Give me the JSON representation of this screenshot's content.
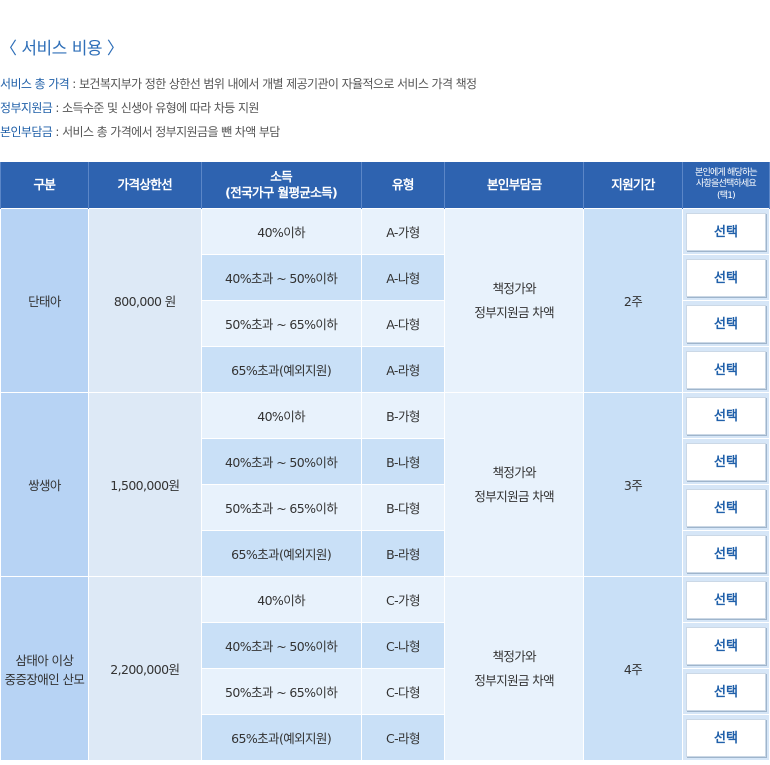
{
  "title": "〈 서비스 비용 〉",
  "descriptions": [
    {
      "key": "서비스 총 가격",
      "text": " : 보건복지부가 정한 상한선 범위 내에서 개별 제공기관이 자율적으로 서비스 가격 책정"
    },
    {
      "key": "정부지원금",
      "text": " : 소득수준 및 신생아 유형에 따라 차등 지원"
    },
    {
      "key": "본인부담금",
      "text": " : 서비스 총 가격에서 정부지원금을 뺀 차액 부담"
    }
  ],
  "headers": {
    "category": "구분",
    "price_cap": "가격상한선",
    "income_line1": "소득",
    "income_line2": "(전국가구 월평균소득)",
    "type": "유형",
    "self_pay": "본인부담금",
    "period": "지원기간",
    "select_line1": "본인에게 해당하는",
    "select_line2": "사항을선택하세요",
    "select_line3": "(택1)"
  },
  "groups": [
    {
      "category": "단태아",
      "price": "800,000 원",
      "self_pay_line1": "책정가와",
      "self_pay_line2": "정부지원금 차액",
      "period": "2주",
      "rows": [
        {
          "income": "40%이하",
          "type": "A-가형",
          "button": "선택"
        },
        {
          "income": "40%초과 ~ 50%이하",
          "type": "A-나형",
          "button": "선택"
        },
        {
          "income": "50%초과 ~ 65%이하",
          "type": "A-다형",
          "button": "선택"
        },
        {
          "income": "65%초과(예외지원)",
          "type": "A-라형",
          "button": "선택"
        }
      ]
    },
    {
      "category": "쌍생아",
      "price": "1,500,000원",
      "self_pay_line1": "책정가와",
      "self_pay_line2": "정부지원금 차액",
      "period": "3주",
      "rows": [
        {
          "income": "40%이하",
          "type": "B-가형",
          "button": "선택"
        },
        {
          "income": "40%초과 ~ 50%이하",
          "type": "B-나형",
          "button": "선택"
        },
        {
          "income": "50%초과 ~ 65%이하",
          "type": "B-다형",
          "button": "선택"
        },
        {
          "income": "65%초과(예외지원)",
          "type": "B-라형",
          "button": "선택"
        }
      ]
    },
    {
      "category_line1": "삼태아 이상",
      "category_line2": "중증장애인 산모",
      "price": "2,200,000원",
      "self_pay_line1": "책정가와",
      "self_pay_line2": "정부지원금 차액",
      "period": "4주",
      "rows": [
        {
          "income": "40%이하",
          "type": "C-가형",
          "button": "선택"
        },
        {
          "income": "40%초과 ~ 50%이하",
          "type": "C-나형",
          "button": "선택"
        },
        {
          "income": "50%초과 ~ 65%이하",
          "type": "C-다형",
          "button": "선택"
        },
        {
          "income": "65%초과(예외지원)",
          "type": "C-라형",
          "button": "선택"
        }
      ]
    }
  ]
}
